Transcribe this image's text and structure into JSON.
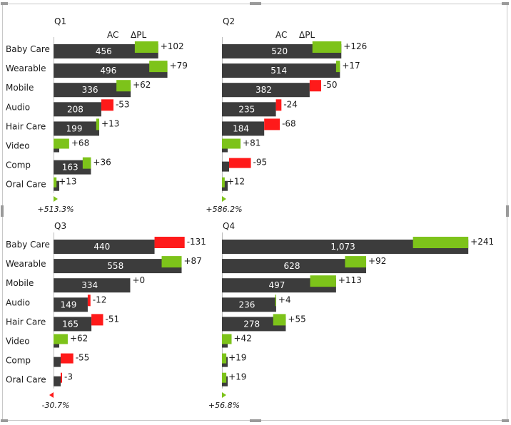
{
  "categories": [
    "Baby Care",
    "Wearable",
    "Mobile",
    "Audio",
    "Hair Care",
    "Video",
    "Comp",
    "Oral Care"
  ],
  "colors": {
    "bar": "#3c3c3c",
    "positive": "#7dc31a",
    "negative": "#ff1a1a",
    "label_on_bar": "#ffffff",
    "text": "#1a1a1a"
  },
  "chart_data": [
    {
      "type": "bar",
      "title": "Q1",
      "header_ac": "AC",
      "header_dpl": "ΔPL",
      "categories": [
        "Baby Care",
        "Wearable",
        "Mobile",
        "Audio",
        "Hair Care",
        "Video",
        "Comp",
        "Oral Care"
      ],
      "series": [
        {
          "name": "AC",
          "values": [
            456,
            496,
            336,
            208,
            199,
            null,
            163,
            null
          ],
          "labels": [
            "456",
            "496",
            "336",
            "208",
            "199",
            "",
            "163",
            ""
          ]
        },
        {
          "name": "ΔPL",
          "values": [
            102,
            79,
            62,
            -53,
            13,
            68,
            36,
            13
          ],
          "labels": [
            "+102",
            "+79",
            "+62",
            "-53",
            "+13",
            "+68",
            "+36",
            "+13"
          ]
        }
      ],
      "total_label": "+513.3%",
      "total_direction": "up"
    },
    {
      "type": "bar",
      "title": "Q2",
      "header_ac": "AC",
      "header_dpl": "ΔPL",
      "categories": [
        "Baby Care",
        "Wearable",
        "Mobile",
        "Audio",
        "Hair Care",
        "Video",
        "Comp",
        "Oral Care"
      ],
      "series": [
        {
          "name": "AC",
          "values": [
            520,
            514,
            382,
            235,
            184,
            null,
            null,
            null
          ],
          "labels": [
            "520",
            "514",
            "382",
            "235",
            "184",
            "",
            "",
            ""
          ]
        },
        {
          "name": "ΔPL",
          "values": [
            126,
            17,
            -50,
            -24,
            -68,
            81,
            -95,
            12
          ],
          "labels": [
            "+126",
            "+17",
            "-50",
            "-24",
            "-68",
            "+81",
            "-95",
            "+12"
          ]
        }
      ],
      "total_label": "+586.2%",
      "total_direction": "up"
    },
    {
      "type": "bar",
      "title": "Q3",
      "categories": [
        "Baby Care",
        "Wearable",
        "Mobile",
        "Audio",
        "Hair Care",
        "Video",
        "Comp",
        "Oral Care"
      ],
      "series": [
        {
          "name": "AC",
          "values": [
            440,
            558,
            334,
            149,
            165,
            null,
            null,
            null
          ],
          "labels": [
            "440",
            "558",
            "334",
            "149",
            "165",
            "",
            "",
            ""
          ]
        },
        {
          "name": "ΔPL",
          "values": [
            -131,
            87,
            0,
            -12,
            -51,
            62,
            -55,
            -3
          ],
          "labels": [
            "-131",
            "+87",
            "+0",
            "-12",
            "-51",
            "+62",
            "-55",
            "-3"
          ]
        }
      ],
      "total_label": "-30.7%",
      "total_direction": "down"
    },
    {
      "type": "bar",
      "title": "Q4",
      "categories": [
        "Baby Care",
        "Wearable",
        "Mobile",
        "Audio",
        "Hair Care",
        "Video",
        "Comp",
        "Oral Care"
      ],
      "series": [
        {
          "name": "AC",
          "values": [
            1073,
            628,
            497,
            236,
            278,
            null,
            null,
            null
          ],
          "labels": [
            "1,073",
            "628",
            "497",
            "236",
            "278",
            "",
            "",
            ""
          ]
        },
        {
          "name": "ΔPL",
          "values": [
            241,
            92,
            113,
            4,
            55,
            42,
            19,
            19
          ],
          "labels": [
            "+241",
            "+92",
            "+113",
            "+4",
            "+55",
            "+42",
            "+19",
            "+19"
          ]
        }
      ],
      "total_label": "+56.8%",
      "total_direction": "up"
    }
  ]
}
